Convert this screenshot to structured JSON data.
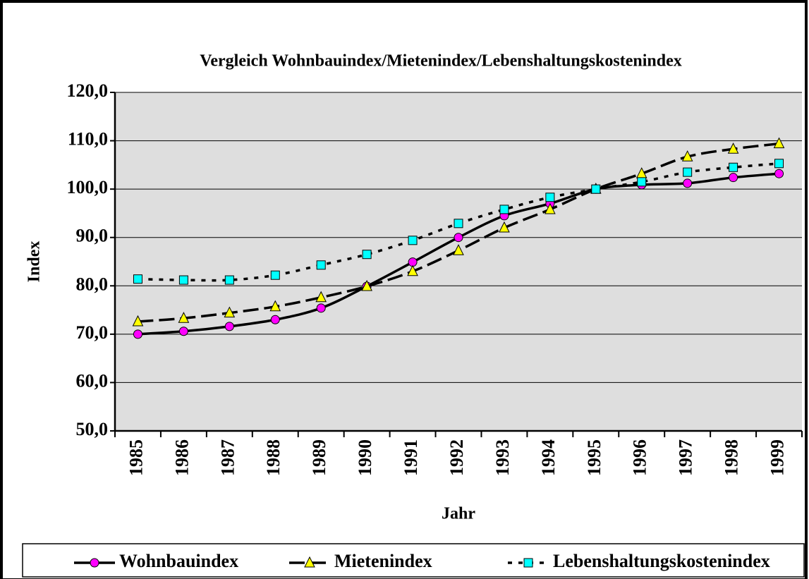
{
  "chart_data": {
    "type": "line",
    "title": "Vergleich Wohnbauindex/Mietenindex/Lebenshaltungskostenindex",
    "x_label": "Jahr",
    "y_label": "Index",
    "categories": [
      "1985",
      "1986",
      "1987",
      "1988",
      "1989",
      "1990",
      "1991",
      "1992",
      "1993",
      "1994",
      "1995",
      "1996",
      "1997",
      "1998",
      "1999"
    ],
    "series": [
      {
        "name": "Wohnbauindex",
        "color": "#ff00ff",
        "marker": "circle",
        "line_style": "solid",
        "values": [
          70.0,
          70.6,
          71.6,
          73.0,
          75.4,
          79.9,
          84.9,
          90.0,
          94.5,
          97.0,
          100.0,
          100.9,
          101.2,
          102.4,
          103.2
        ]
      },
      {
        "name": "Mietenindex",
        "color": "#ffff00",
        "marker": "triangle",
        "line_style": "dashed",
        "values": [
          72.6,
          73.3,
          74.4,
          75.7,
          77.6,
          79.9,
          83.0,
          87.3,
          92.0,
          95.8,
          100.0,
          103.2,
          106.7,
          108.3,
          109.4
        ]
      },
      {
        "name": "Lebenshaltungskostenindex",
        "color": "#00ffff",
        "marker": "square",
        "line_style": "dotted",
        "values": [
          81.4,
          81.2,
          81.2,
          82.2,
          84.3,
          86.5,
          89.4,
          92.9,
          95.8,
          98.3,
          100.0,
          101.5,
          103.5,
          104.5,
          105.3
        ]
      }
    ],
    "ylim": [
      50,
      120
    ],
    "yticks": [
      {
        "value": 50,
        "label": "50,0"
      },
      {
        "value": 60,
        "label": "60,0"
      },
      {
        "value": 70,
        "label": "70,0"
      },
      {
        "value": 80,
        "label": "80,0"
      },
      {
        "value": 90,
        "label": "90,0"
      },
      {
        "value": 100,
        "label": "100,0"
      },
      {
        "value": 110,
        "label": "110,0"
      },
      {
        "value": 120,
        "label": "120,0"
      }
    ],
    "grid": true,
    "legend": "bottom"
  }
}
